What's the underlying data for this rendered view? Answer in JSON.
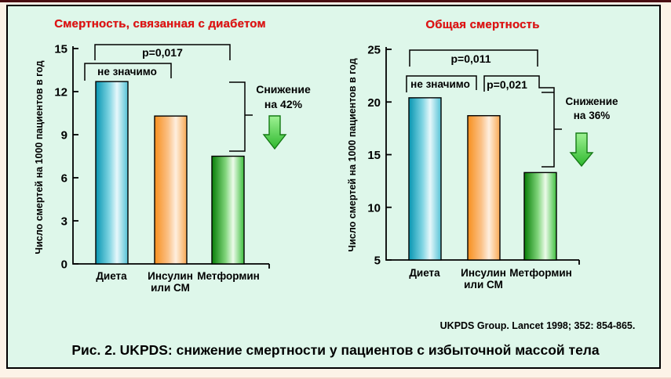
{
  "page": {
    "caption": "Рис. 2. UKPDS: снижение смертности у пациентов с избыточной массой тела",
    "citation": "UKPDS Group. Lancet 1998; 352: 854-865.",
    "background_color": "#def7ea",
    "outer_background": "#fcf3e7",
    "title_color": "#e31212",
    "arrow_color_light": "#9ef293",
    "arrow_color_dark": "#2eb82e"
  },
  "chart_data": [
    {
      "type": "bar",
      "title": "Смертность, связанная с диабетом",
      "ylabel": "Число смертей на 1000 пациентов в год",
      "categories": [
        [
          "Диета"
        ],
        [
          "Инсулин",
          "или СМ"
        ],
        [
          "Метформин"
        ]
      ],
      "values": [
        12.7,
        10.3,
        7.5
      ],
      "ylim": [
        0,
        15
      ],
      "yticks": [
        0,
        3,
        6,
        9,
        12,
        15
      ],
      "grid": false,
      "legend": "none",
      "bar_gradients": [
        [
          "#0795b1",
          "#7fd4e2",
          "#e7f8fb",
          "#54c2d6"
        ],
        [
          "#f78f1e",
          "#fbc186",
          "#feefdf",
          "#f9a953"
        ],
        [
          "#077d07",
          "#7fd47a",
          "#ecfbea",
          "#3cbe3c"
        ]
      ],
      "annotations": {
        "p_top": "p=0,017",
        "not_significant": "не значимо",
        "reduction_line1": "Снижение",
        "reduction_line2": "на 42%"
      }
    },
    {
      "type": "bar",
      "title": "Общая смертность",
      "ylabel": "Число смертей на 1000 пациентов в год",
      "categories": [
        [
          "Диета"
        ],
        [
          "Инсулин",
          "или СМ"
        ],
        [
          "Метформин"
        ]
      ],
      "values": [
        20.4,
        18.7,
        13.3
      ],
      "ylim": [
        5,
        25
      ],
      "yticks": [
        5,
        10,
        15,
        20,
        25
      ],
      "grid": false,
      "legend": "none",
      "bar_gradients": [
        [
          "#0795b1",
          "#7fd4e2",
          "#e7f8fb",
          "#54c2d6"
        ],
        [
          "#f78f1e",
          "#fbc186",
          "#feefdf",
          "#f9a953"
        ],
        [
          "#077d07",
          "#7fd47a",
          "#ecfbea",
          "#3cbe3c"
        ]
      ],
      "annotations": {
        "p_top": "p=0,011",
        "not_significant": "не значимо",
        "p_mid": "p=0,021",
        "reduction_line1": "Снижение",
        "reduction_line2": "на 36%"
      }
    }
  ]
}
